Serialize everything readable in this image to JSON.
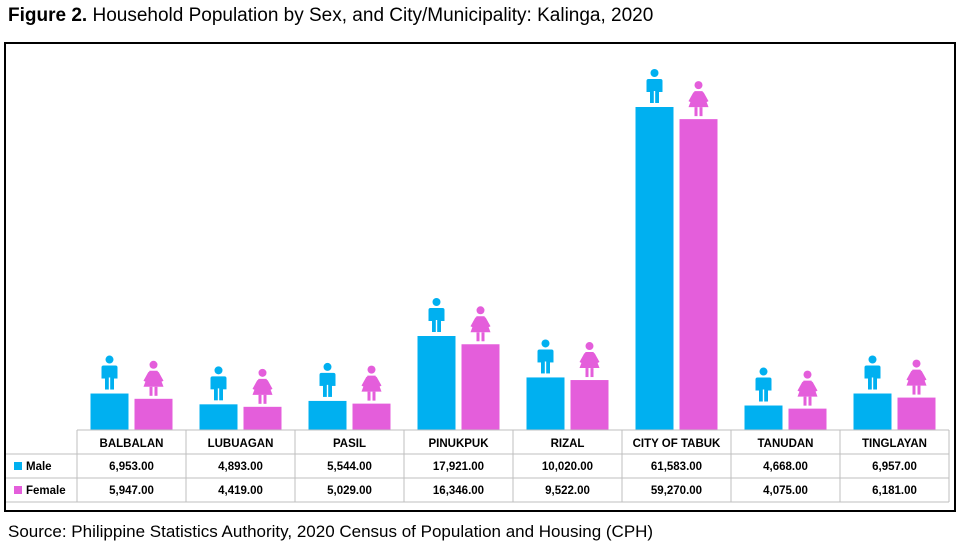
{
  "figure": {
    "label": "Figure 2.",
    "title": "Household Population by Sex, and City/Municipality: Kalinga, 2020",
    "source": "Source: Philippine Statistics Authority, 2020 Census of Population and Housing (CPH)"
  },
  "colors": {
    "male": "#00B0F0",
    "female": "#E45EDB"
  },
  "icons": {
    "male": "male-person-icon",
    "female": "female-person-icon"
  },
  "chart_data": {
    "type": "bar",
    "title": "Household Population by Sex, and City/Municipality: Kalinga, 2020",
    "xlabel": "",
    "ylabel": "",
    "grid": false,
    "legend": "table-left",
    "ylim": [
      0,
      61583
    ],
    "categories": [
      "BALBALAN",
      "LUBUAGAN",
      "PASIL",
      "PINUKPUK",
      "RIZAL",
      "CITY OF TABUK",
      "TANUDAN",
      "TINGLAYAN"
    ],
    "series": [
      {
        "name": "Male",
        "values": [
          6953,
          4893,
          5544,
          17921,
          10020,
          61583,
          4668,
          6957
        ],
        "labels": [
          "6,953.00",
          "4,893.00",
          "5,544.00",
          "17,921.00",
          "10,020.00",
          "61,583.00",
          "4,668.00",
          "6,957.00"
        ]
      },
      {
        "name": "Female",
        "values": [
          5947,
          4419,
          5029,
          16346,
          9522,
          59270,
          4075,
          6181
        ],
        "labels": [
          "5,947.00",
          "4,419.00",
          "5,029.00",
          "16,346.00",
          "9,522.00",
          "59,270.00",
          "4,075.00",
          "6,181.00"
        ]
      }
    ]
  }
}
